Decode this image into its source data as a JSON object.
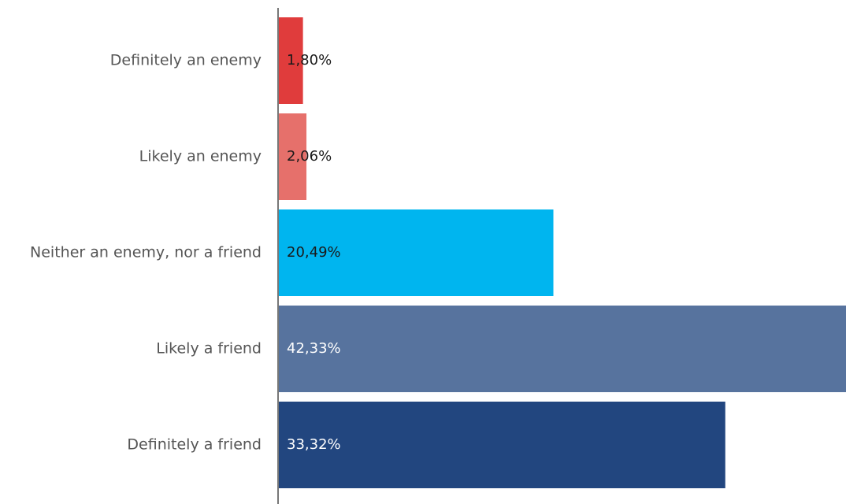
{
  "chart_data": {
    "type": "bar",
    "orientation": "horizontal",
    "categories": [
      "Definitely an enemy",
      "Likely an enemy",
      "Neither an enemy, nor a friend",
      "Likely a friend",
      "Definitely a friend"
    ],
    "values": [
      1.8,
      2.06,
      20.49,
      42.33,
      33.32
    ],
    "value_labels": [
      "1,80%",
      "2,06%",
      "20,49%",
      "42,33%",
      "33,32%"
    ],
    "colors": [
      "#e03c3c",
      "#e6706b",
      "#00b5ef",
      "#57739e",
      "#22467f"
    ],
    "label_colors": [
      "#1a1a1a",
      "#1a1a1a",
      "#1a1a1a",
      "#ffffff",
      "#ffffff"
    ],
    "axis_color": "#777777",
    "title": "",
    "xlabel": "",
    "ylabel": "",
    "xlim": [
      0,
      42.33
    ],
    "grid": false,
    "legend": "none"
  }
}
